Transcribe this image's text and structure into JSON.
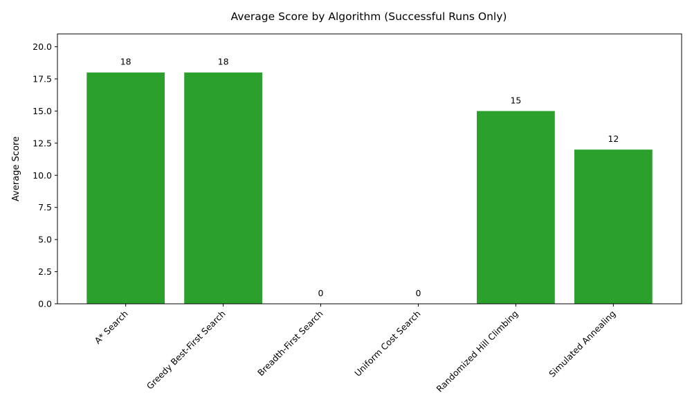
{
  "chart_data": {
    "type": "bar",
    "title": "Average Score by Algorithm (Successful Runs Only)",
    "xlabel": "",
    "ylabel": "Average Score",
    "categories": [
      "A* Search",
      "Greedy Best-First Search",
      "Breadth-First Search",
      "Uniform Cost Search",
      "Randomized Hill Climbing",
      "Simulated Annealing"
    ],
    "values": [
      18,
      18,
      0,
      0,
      15,
      12
    ],
    "data_labels": [
      "18",
      "18",
      "0",
      "0",
      "15",
      "12"
    ],
    "ylim": [
      0,
      21
    ],
    "yticks": [
      0.0,
      2.5,
      5.0,
      7.5,
      10.0,
      12.5,
      15.0,
      17.5,
      20.0
    ],
    "ytick_labels": [
      "0.0",
      "2.5",
      "5.0",
      "7.5",
      "10.0",
      "12.5",
      "15.0",
      "17.5",
      "20.0"
    ],
    "grid": false,
    "legend": "none",
    "bar_color": "#2ca02c",
    "axis_color": "#000000"
  }
}
